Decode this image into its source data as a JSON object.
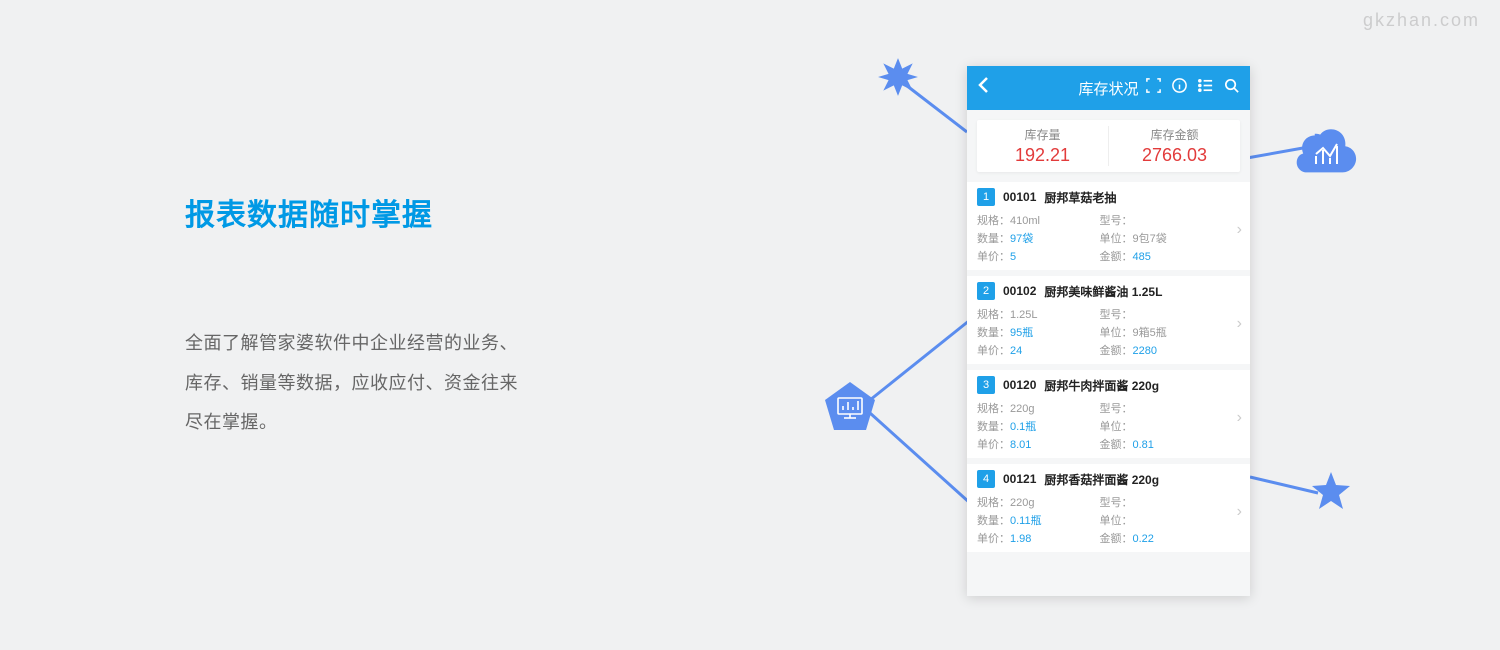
{
  "watermark": "gkzhan.com",
  "left": {
    "heading": "报表数据随时掌握",
    "description_line1": "全面了解管家婆软件中企业经营的业务、",
    "description_line2": "库存、销量等数据，应收应付、资金往来",
    "description_line3": "尽在掌握。"
  },
  "colors": {
    "accent": "#1fa0e8",
    "heading": "#0099e5",
    "danger": "#e23b3b",
    "value_blue": "#1fa0e8",
    "decoration": "#5b8def",
    "bg": "#f0f1f2"
  },
  "phone": {
    "header_title": "库存状况",
    "summary": {
      "qty_label": "库存量",
      "qty_value": "192.21",
      "amount_label": "库存金额",
      "amount_value": "2766.03"
    },
    "field_labels": {
      "spec": "规格：",
      "model": "型号：",
      "qty": "数量：",
      "unit": "单位：",
      "price": "单价：",
      "amount": "金额："
    },
    "items": [
      {
        "idx": "1",
        "code": "00101",
        "name": "厨邦草菇老抽",
        "spec": "410ml",
        "model": "",
        "qty": "97袋",
        "unit": "9包7袋",
        "price": "5",
        "amount": "485"
      },
      {
        "idx": "2",
        "code": "00102",
        "name": "厨邦美味鲜酱油 1.25L",
        "spec": "1.25L",
        "model": "",
        "qty": "95瓶",
        "unit": "9箱5瓶",
        "price": "24",
        "amount": "2280"
      },
      {
        "idx": "3",
        "code": "00120",
        "name": "厨邦牛肉拌面酱 220g",
        "spec": "220g",
        "model": "",
        "qty": "0.1瓶",
        "unit": "",
        "price": "8.01",
        "amount": "0.81"
      },
      {
        "idx": "4",
        "code": "00121",
        "name": "厨邦香菇拌面酱 220g",
        "spec": "220g",
        "model": "",
        "qty": "0.11瓶",
        "unit": "",
        "price": "1.98",
        "amount": "0.22"
      }
    ]
  }
}
